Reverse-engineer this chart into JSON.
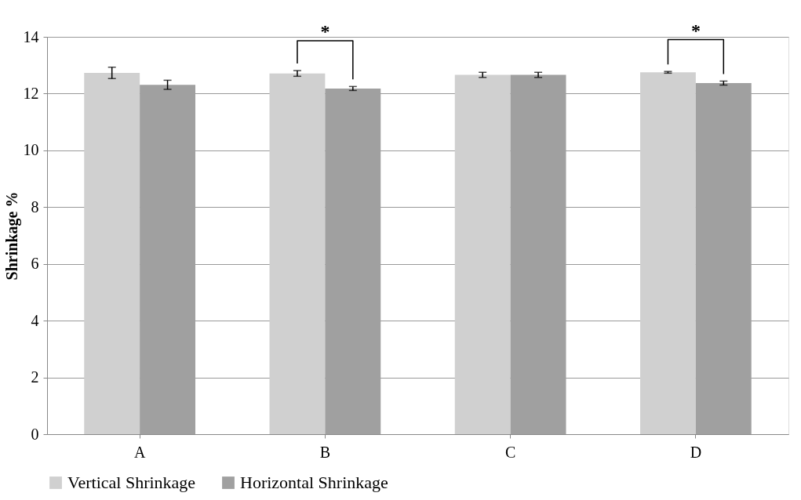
{
  "chart_data": {
    "type": "bar",
    "ylabel": "Shrinkage %",
    "categories": [
      "A",
      "B",
      "C",
      "D"
    ],
    "series": [
      {
        "name": "Vertical Shrinkage",
        "color": "#d0d0d0",
        "values": [
          12.73,
          12.71,
          12.66,
          12.75
        ],
        "errors": [
          0.2,
          0.1,
          0.09,
          0.03
        ]
      },
      {
        "name": "Horizontal Shrinkage",
        "color": "#a0a0a0",
        "values": [
          12.31,
          12.18,
          12.66,
          12.37
        ],
        "errors": [
          0.16,
          0.07,
          0.09,
          0.07
        ]
      }
    ],
    "ylim": [
      0,
      14
    ],
    "yticks": [
      0,
      2,
      4,
      6,
      8,
      10,
      12,
      14
    ],
    "grid": "y",
    "legend": "bottom",
    "annotations": [
      {
        "text": "*",
        "x": "B",
        "y": 12.71
      },
      {
        "text": "*",
        "x": "D",
        "y": 12.75
      }
    ]
  }
}
